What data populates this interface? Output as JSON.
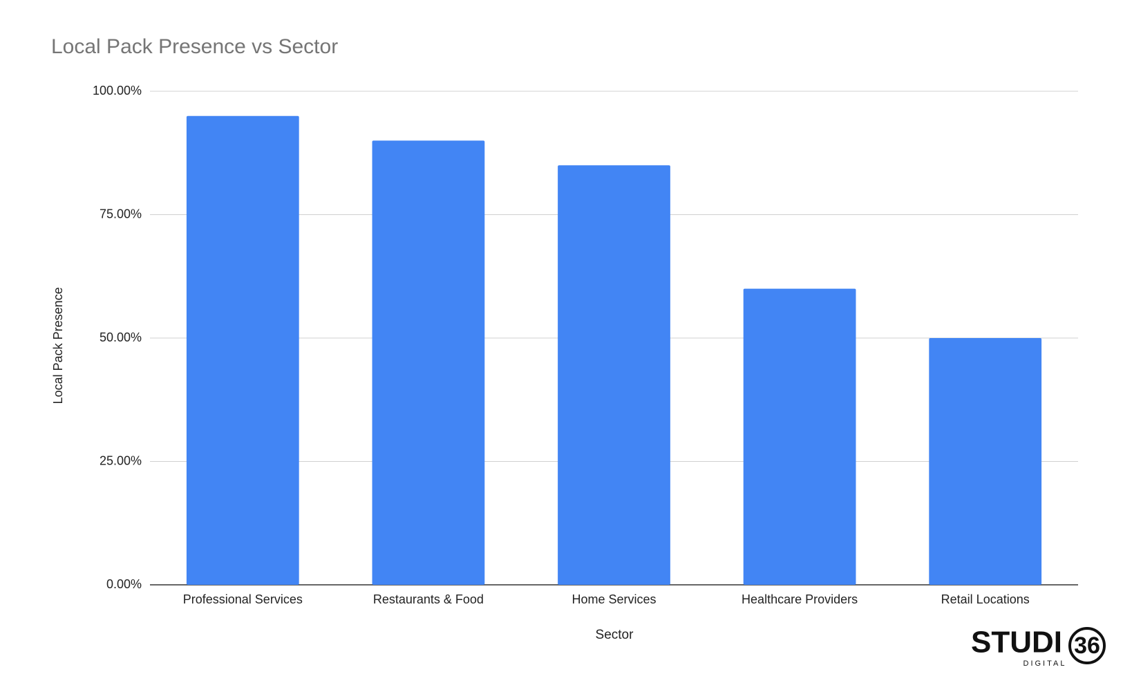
{
  "chart_data": {
    "type": "bar",
    "title": "Local Pack Presence vs Sector",
    "x_label": "Sector",
    "y_label": "Local Pack Presence",
    "categories": [
      "Professional Services",
      "Restaurants & Food",
      "Home Services",
      "Healthcare Providers",
      "Retail Locations"
    ],
    "values": [
      95,
      90,
      85,
      60,
      50
    ],
    "color": "#4285f4",
    "ylim": [
      0,
      100
    ],
    "yticks": [
      {
        "value": 0,
        "label": "0.00%"
      },
      {
        "value": 25,
        "label": "25.00%"
      },
      {
        "value": 50,
        "label": "50.00%"
      },
      {
        "value": 75,
        "label": "75.00%"
      },
      {
        "value": 100,
        "label": "100.00%"
      }
    ],
    "grid": true
  },
  "logo": {
    "text": "STUDI",
    "number": "36",
    "sub": "DIGITAL"
  }
}
